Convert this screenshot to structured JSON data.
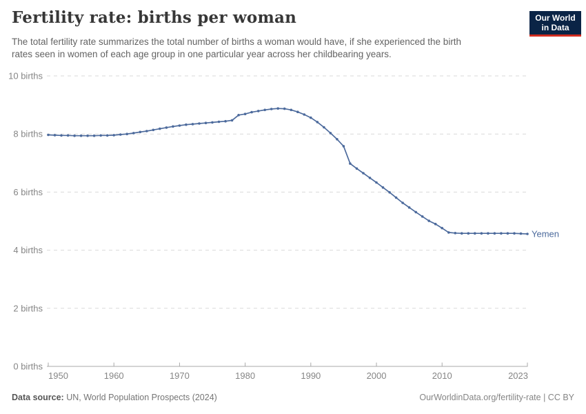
{
  "header": {
    "title": "Fertility rate: births per woman",
    "subtitle_lines": [
      "The total fertility rate summarizes the total number of births a woman would have, if she experienced the birth",
      "rates seen in women of each age group in one particular year across her childbearing years."
    ],
    "logo": {
      "line1": "Our World",
      "line2": "in Data"
    }
  },
  "chart_data": {
    "type": "line",
    "title": "Fertility rate: births per woman",
    "xlabel": "",
    "ylabel": "births per woman",
    "xlim": [
      1950,
      2023
    ],
    "ylim": [
      0,
      10
    ],
    "grid": "dashed-horizontal",
    "legend_position": "end-of-line",
    "x_ticks": [
      1950,
      1960,
      1970,
      1980,
      1990,
      2000,
      2010,
      2023
    ],
    "x_tick_labels": [
      "1950",
      "1960",
      "1970",
      "1980",
      "1990",
      "2000",
      "2010",
      "2023"
    ],
    "y_ticks": [
      0,
      2,
      4,
      6,
      8,
      10
    ],
    "y_tick_labels": [
      "0 births",
      "2 births",
      "4 births",
      "6 births",
      "8 births",
      "10 births"
    ],
    "series": [
      {
        "name": "Yemen",
        "color": "#4c6a9c",
        "x": [
          1950,
          1951,
          1952,
          1953,
          1954,
          1955,
          1956,
          1957,
          1958,
          1959,
          1960,
          1961,
          1962,
          1963,
          1964,
          1965,
          1966,
          1967,
          1968,
          1969,
          1970,
          1971,
          1972,
          1973,
          1974,
          1975,
          1976,
          1977,
          1978,
          1979,
          1980,
          1981,
          1982,
          1983,
          1984,
          1985,
          1986,
          1987,
          1988,
          1989,
          1990,
          1991,
          1992,
          1993,
          1994,
          1995,
          1996,
          1997,
          1998,
          1999,
          2000,
          2001,
          2002,
          2003,
          2004,
          2005,
          2006,
          2007,
          2008,
          2009,
          2010,
          2011,
          2012,
          2013,
          2014,
          2015,
          2016,
          2017,
          2018,
          2019,
          2020,
          2021,
          2022,
          2023
        ],
        "values": [
          7.97,
          7.96,
          7.95,
          7.95,
          7.94,
          7.94,
          7.94,
          7.94,
          7.95,
          7.95,
          7.96,
          7.98,
          8.0,
          8.03,
          8.07,
          8.1,
          8.14,
          8.18,
          8.22,
          8.26,
          8.29,
          8.32,
          8.34,
          8.36,
          8.38,
          8.4,
          8.42,
          8.44,
          8.47,
          8.65,
          8.69,
          8.75,
          8.79,
          8.83,
          8.86,
          8.88,
          8.87,
          8.83,
          8.76,
          8.67,
          8.56,
          8.41,
          8.23,
          8.03,
          7.82,
          7.58,
          6.98,
          6.81,
          6.65,
          6.49,
          6.33,
          6.16,
          5.99,
          5.81,
          5.63,
          5.47,
          5.31,
          5.16,
          5.01,
          4.9,
          4.76,
          4.61,
          4.59,
          4.58,
          4.58,
          4.58,
          4.58,
          4.58,
          4.58,
          4.58,
          4.58,
          4.58,
          4.57,
          4.56
        ]
      }
    ]
  },
  "colors": {
    "line": "#4c6a9c",
    "grid": "#d9d9d9",
    "axis": "#a8a8a8",
    "tick_label": "#858585",
    "logo_bg": "#0a2446",
    "logo_red": "#d12d20"
  },
  "footer": {
    "data_source_label": "Data source:",
    "data_source_value": " UN, World Population Prospects (2024)",
    "url_text": "OurWorldinData.org/fertility-rate",
    "separator": " | ",
    "license_text": "CC BY"
  }
}
